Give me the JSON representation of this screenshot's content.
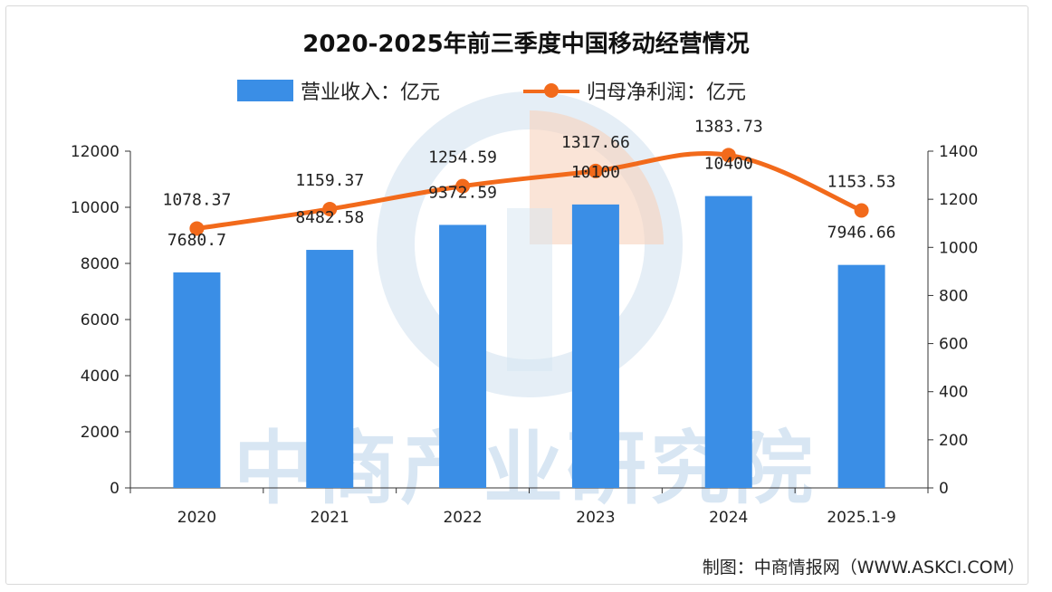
{
  "credit": "制图：中商情报网（WWW.ASKCI.COM）",
  "watermark": "中商产业研究院",
  "colors": {
    "bar": "#3a8ee6",
    "line": "#f26a1b"
  },
  "chart_data": {
    "type": "bar+line",
    "title": "2020-2025年前三季度中国移动经营情况",
    "categories": [
      "2020",
      "2021",
      "2022",
      "2023",
      "2024",
      "2025.1-9"
    ],
    "series": [
      {
        "name": "营业收入：亿元",
        "type": "bar",
        "axis": "left",
        "values": [
          7680.7,
          8482.58,
          9372.59,
          10100,
          10400,
          7946.66
        ],
        "labels": [
          "7680.7",
          "8482.58",
          "9372.59",
          "10100",
          "10400",
          "7946.66"
        ]
      },
      {
        "name": "归母净利润：亿元",
        "type": "line",
        "axis": "right",
        "values": [
          1078.37,
          1159.37,
          1254.59,
          1317.66,
          1383.73,
          1153.53
        ],
        "labels": [
          "1078.37",
          "1159.37",
          "1254.59",
          "1317.66",
          "1383.73",
          "1153.53"
        ]
      }
    ],
    "y_left": {
      "min": 0,
      "max": 12000,
      "ticks": [
        "0",
        "2000",
        "4000",
        "6000",
        "8000",
        "10000",
        "12000"
      ]
    },
    "y_right": {
      "min": 0,
      "max": 1400,
      "ticks": [
        "0",
        "200",
        "400",
        "600",
        "800",
        "1000",
        "1200",
        "1400"
      ]
    },
    "legend_position": "top",
    "grid": false
  }
}
